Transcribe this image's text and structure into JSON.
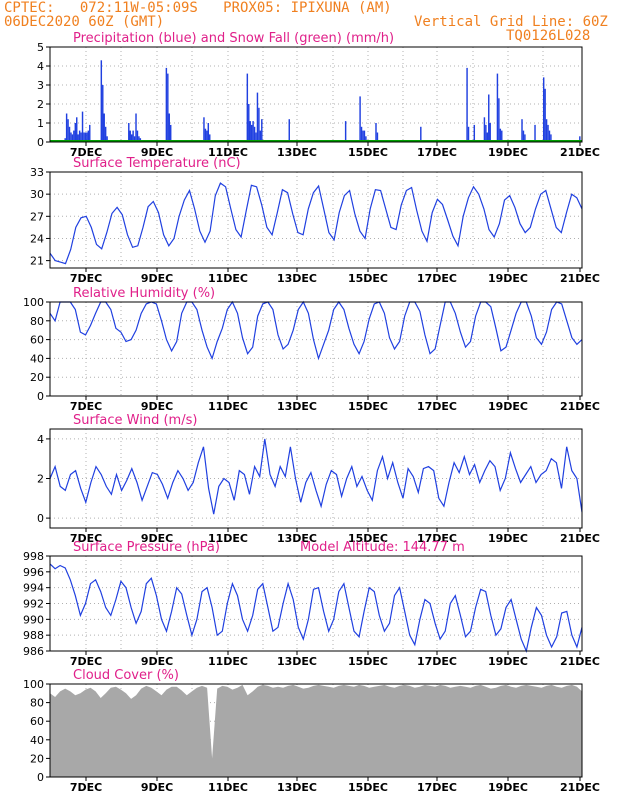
{
  "header": {
    "line1_left": "CPTEC:   072:11W-05:09S   PROX05: IPIXUNA (AM)",
    "line2_left": "06DEC2020 60Z (GMT)",
    "line2_right": "Vertical Grid Line: 60Z",
    "line3_right": "TQ0126L028"
  },
  "colors": {
    "header": "#f08020",
    "title": "#e0208a",
    "series_blue": "#2040e0",
    "series_green": "#00a000",
    "cloud": "#a8a8a8"
  },
  "x_axis": {
    "ticks": [
      "7DEC",
      "9DEC",
      "11DEC",
      "13DEC",
      "15DEC",
      "17DEC",
      "19DEC",
      "21DEC"
    ]
  },
  "chart_data": [
    {
      "type": "bar",
      "title": "Precipitation (blue) and Snow Fall (green) (mm/h)",
      "ylim": [
        0,
        5
      ],
      "yticks": [
        "0",
        "1",
        "2",
        "3",
        "4",
        "5"
      ],
      "series": [
        {
          "values": [
            0,
            0,
            0,
            0,
            0.1,
            0.1,
            0.1,
            0,
            0.1,
            0,
            0.2,
            1.5,
            1.2,
            0.8,
            0.5,
            0.4,
            0.6,
            1.0,
            1.3,
            0.4,
            0.6,
            0.5,
            1.6,
            0.5,
            0.5,
            0.5,
            0.6,
            0.9,
            0,
            0,
            0,
            0,
            0,
            0,
            0,
            4.3,
            3.0,
            1.5,
            0.8,
            0.3,
            0,
            0,
            0,
            0,
            0,
            0,
            0,
            0,
            0,
            0,
            0,
            0,
            0,
            0,
            1.0,
            0.6,
            0.4,
            0.6,
            0.3,
            1.5,
            0.6,
            0.3,
            0.2,
            0,
            0,
            0,
            0,
            0,
            0,
            0,
            0,
            0,
            0,
            0,
            0,
            0,
            0,
            0,
            0,
            0,
            3.9,
            3.6,
            1.5,
            0.9,
            0,
            0,
            0,
            0,
            0,
            0,
            0,
            0,
            0,
            0,
            0,
            0,
            0,
            0,
            0,
            0,
            0,
            0,
            0,
            0,
            0,
            0,
            1.3,
            0.7,
            0.6,
            1.0,
            0.4,
            0,
            0,
            0,
            0,
            0,
            0,
            0,
            0,
            0,
            0,
            0,
            0,
            0,
            0,
            0,
            0,
            0,
            0,
            0,
            0,
            0,
            0,
            0,
            0,
            0,
            3.6,
            2.0,
            1.1,
            0.9,
            1.1,
            0.8,
            0.5,
            2.6,
            1.8,
            0.6,
            1.2,
            0,
            0,
            0,
            0,
            0,
            0,
            0,
            0,
            0,
            0,
            0,
            0,
            0,
            0,
            0,
            0,
            0,
            0,
            1.2,
            0,
            0,
            0,
            0,
            0,
            0,
            0,
            0,
            0,
            0,
            0,
            0,
            0,
            0,
            0,
            0,
            0,
            0,
            0,
            0,
            0,
            0,
            0,
            0,
            0,
            0,
            0,
            0,
            0,
            0,
            0,
            0,
            0,
            0,
            0,
            0,
            0,
            0,
            1.1,
            0,
            0,
            0,
            0,
            0,
            0,
            0,
            0,
            0,
            2.4,
            0.8,
            0.6,
            0.6,
            0.3,
            0,
            0,
            0,
            0,
            0,
            0,
            1.0,
            0.5,
            0,
            0,
            0,
            0,
            0,
            0,
            0,
            0,
            0,
            0,
            0,
            0,
            0,
            0,
            0,
            0,
            0,
            0,
            0,
            0,
            0,
            0,
            0,
            0,
            0,
            0,
            0,
            0,
            0,
            0.8,
            0,
            0,
            0,
            0,
            0,
            0,
            0,
            0,
            0,
            0,
            0,
            0,
            0,
            0,
            0,
            0,
            0,
            0,
            0,
            0,
            0,
            0,
            0,
            0,
            0,
            0,
            0,
            0,
            0,
            0,
            0,
            3.9,
            0.8,
            0,
            0,
            0,
            0.9,
            0,
            0,
            0,
            0,
            0,
            0,
            1.3,
            0.9,
            0.5,
            2.5,
            1.0,
            0,
            0,
            0,
            0,
            3.6,
            2.3,
            0.7,
            0.6,
            0,
            0,
            0,
            0,
            0,
            0,
            0,
            0,
            0,
            0,
            0,
            0,
            0,
            1.2,
            0.6,
            0.4,
            0,
            0,
            0,
            0,
            0,
            0,
            0.9,
            0,
            0,
            0,
            0,
            0,
            3.4,
            2.8,
            1.2,
            0.9,
            0.6,
            0.4,
            0,
            0,
            0,
            0,
            0,
            0,
            0,
            0,
            0,
            0,
            0,
            0,
            0,
            0,
            0,
            0,
            0,
            0,
            0,
            0.3,
            0
          ]
        }
      ]
    },
    {
      "type": "line",
      "title": "Surface Temperature (nC)",
      "ylim": [
        20,
        33
      ],
      "yticks": [
        "21",
        "24",
        "27",
        "30",
        "33"
      ],
      "y": [
        22.0,
        21.0,
        20.8,
        20.6,
        22.5,
        25.5,
        26.8,
        27.0,
        25.5,
        23.2,
        22.6,
        24.8,
        27.4,
        28.2,
        27.2,
        24.5,
        22.8,
        23.0,
        25.5,
        28.3,
        29.0,
        27.5,
        24.5,
        23.0,
        24.0,
        27.0,
        29.2,
        30.5,
        28.0,
        25.0,
        23.5,
        25.0,
        29.8,
        31.5,
        31.0,
        28.0,
        25.2,
        24.2,
        27.8,
        31.2,
        31.0,
        28.5,
        25.5,
        24.5,
        27.5,
        30.6,
        30.2,
        27.3,
        24.8,
        24.5,
        28.0,
        30.2,
        31.1,
        28.0,
        24.8,
        23.8,
        27.5,
        29.8,
        30.5,
        27.4,
        25.0,
        24.0,
        28.0,
        30.6,
        30.5,
        28.0,
        25.5,
        25.2,
        28.5,
        30.5,
        30.9,
        27.8,
        25.0,
        23.6,
        27.5,
        29.3,
        28.6,
        26.5,
        24.3,
        23.0,
        27.0,
        29.5,
        31.0,
        30.0,
        28.0,
        25.2,
        24.2,
        26.0,
        29.2,
        29.8,
        28.2,
        26.0,
        24.8,
        25.5,
        28.0,
        30.0,
        30.5,
        28.0,
        25.5,
        24.8,
        27.5,
        30.0,
        29.5,
        28.0
      ]
    },
    {
      "type": "line",
      "title": "Relative Humidity (%)",
      "ylim": [
        0,
        100
      ],
      "yticks": [
        "0",
        "20",
        "40",
        "60",
        "80",
        "100"
      ],
      "y": [
        88,
        80,
        100,
        100,
        100,
        92,
        68,
        65,
        75,
        88,
        100,
        100,
        92,
        72,
        68,
        58,
        60,
        70,
        88,
        98,
        100,
        98,
        80,
        60,
        48,
        58,
        88,
        100,
        100,
        92,
        70,
        52,
        40,
        58,
        72,
        92,
        100,
        88,
        62,
        45,
        52,
        85,
        98,
        100,
        92,
        65,
        50,
        55,
        70,
        92,
        100,
        88,
        60,
        40,
        55,
        70,
        92,
        100,
        92,
        72,
        55,
        45,
        58,
        82,
        98,
        100,
        88,
        62,
        50,
        58,
        85,
        100,
        100,
        90,
        65,
        45,
        50,
        75,
        100,
        100,
        88,
        68,
        52,
        58,
        85,
        100,
        100,
        95,
        72,
        48,
        52,
        70,
        88,
        100,
        100,
        85,
        62,
        55,
        68,
        92,
        100,
        98,
        80,
        62,
        55,
        60
      ]
    },
    {
      "type": "line",
      "title": "Surface Wind (m/s)",
      "ylim": [
        -0.5,
        4.5
      ],
      "yticks": [
        "0",
        "2",
        "4"
      ],
      "y": [
        2.0,
        2.6,
        1.6,
        1.4,
        2.2,
        2.4,
        1.5,
        0.8,
        1.8,
        2.6,
        2.2,
        1.6,
        1.2,
        2.2,
        1.4,
        1.9,
        2.5,
        1.8,
        0.9,
        1.6,
        2.3,
        2.2,
        1.7,
        1.0,
        1.8,
        2.4,
        2.0,
        1.4,
        1.8,
        2.8,
        3.6,
        1.5,
        0.2,
        1.6,
        2.0,
        1.8,
        0.9,
        2.4,
        2.2,
        1.2,
        2.6,
        2.1,
        4.0,
        2.2,
        1.6,
        2.6,
        2.1,
        3.6,
        2.0,
        0.8,
        1.8,
        2.3,
        1.4,
        0.6,
        1.7,
        2.4,
        2.2,
        1.1,
        2.0,
        2.6,
        1.6,
        2.1,
        1.4,
        0.9,
        2.4,
        3.1,
        2.0,
        2.8,
        1.8,
        1.0,
        2.5,
        2.1,
        1.3,
        2.5,
        2.6,
        2.4,
        1.0,
        0.6,
        1.8,
        2.8,
        2.3,
        3.1,
        2.2,
        2.7,
        1.8,
        2.4,
        2.9,
        2.6,
        1.4,
        2.0,
        3.3,
        2.5,
        1.8,
        2.2,
        2.6,
        1.8,
        2.2,
        2.4,
        3.0,
        2.8,
        1.5,
        3.6,
        2.4,
        2.0,
        0.3
      ]
    },
    {
      "type": "line",
      "title": "Surface Pressure (hPa)",
      "annotation": "Model Altitude: 144.77 m",
      "ylim": [
        986,
        998
      ],
      "yticks": [
        "986",
        "988",
        "990",
        "992",
        "994",
        "996",
        "998"
      ],
      "y": [
        997.0,
        996.4,
        996.8,
        996.5,
        995.0,
        993.0,
        990.5,
        992.0,
        994.5,
        995.0,
        993.5,
        991.5,
        990.5,
        992.5,
        994.8,
        994.0,
        991.5,
        989.5,
        991.0,
        994.5,
        995.2,
        993.0,
        990.0,
        988.5,
        991.0,
        994.0,
        993.2,
        990.5,
        988.0,
        990.0,
        993.5,
        994.0,
        991.5,
        988.0,
        988.5,
        992.0,
        994.5,
        993.0,
        990.0,
        988.5,
        990.5,
        993.8,
        994.5,
        991.5,
        988.5,
        989.0,
        992.0,
        994.5,
        992.5,
        989.0,
        987.5,
        990.0,
        993.8,
        994.0,
        991.0,
        988.5,
        990.0,
        993.5,
        994.5,
        991.5,
        988.5,
        987.8,
        991.0,
        994.0,
        993.5,
        990.5,
        988.5,
        989.5,
        993.0,
        994.0,
        991.0,
        988.0,
        986.8,
        990.0,
        992.5,
        992.0,
        989.5,
        987.5,
        988.5,
        992.0,
        993.0,
        990.5,
        987.8,
        988.5,
        991.5,
        993.8,
        993.5,
        990.5,
        988.0,
        988.8,
        991.5,
        992.5,
        990.0,
        987.5,
        986.0,
        989.0,
        991.5,
        990.5,
        988.0,
        986.5,
        987.8,
        990.8,
        991.0,
        988.0,
        986.5,
        989.0
      ]
    },
    {
      "type": "area",
      "title": "Cloud Cover (%)",
      "ylim": [
        0,
        100
      ],
      "yticks": [
        "0",
        "20",
        "40",
        "60",
        "80",
        "100"
      ],
      "y": [
        90,
        86,
        92,
        95,
        92,
        88,
        90,
        94,
        96,
        92,
        85,
        90,
        96,
        97,
        94,
        90,
        84,
        88,
        95,
        98,
        96,
        92,
        88,
        94,
        97,
        97,
        93,
        88,
        92,
        96,
        98,
        96,
        20,
        95,
        98,
        97,
        94,
        96,
        99,
        88,
        92,
        97,
        99,
        98,
        96,
        97,
        96,
        98,
        99,
        97,
        95,
        96,
        98,
        99,
        98,
        97,
        96,
        98,
        99,
        98,
        97,
        99,
        98,
        96,
        97,
        98,
        99,
        97,
        96,
        98,
        99,
        98,
        96,
        97,
        99,
        98,
        97,
        99,
        98,
        96,
        97,
        98,
        97,
        96,
        98,
        99,
        97,
        95,
        96,
        98,
        99,
        97,
        96,
        98,
        99,
        98,
        97,
        96,
        98,
        99,
        97,
        96,
        98,
        99,
        97,
        92
      ]
    }
  ]
}
